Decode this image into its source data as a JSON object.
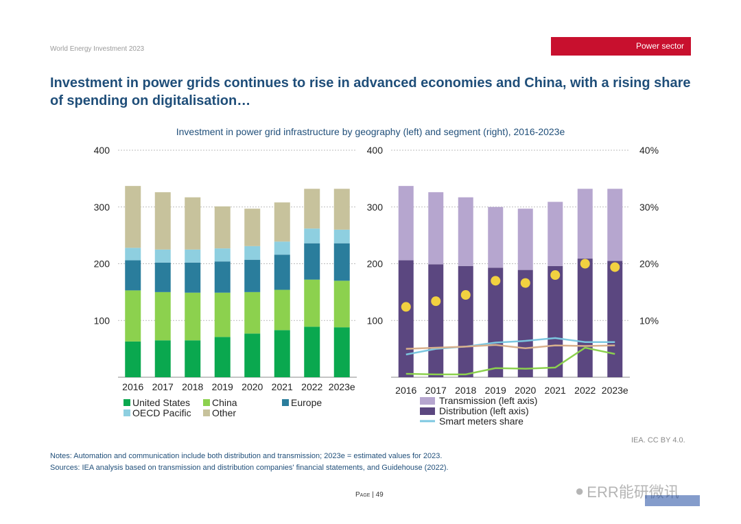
{
  "header": {
    "doc_title": "World Energy Investment 2023",
    "section": "Power sector"
  },
  "headline": "Investment in power grids continues to rise in advanced economies and China, with a rising share of spending on digitalisation…",
  "credit": "IEA. CC BY 4.0.",
  "notes": "Notes: Automation and communication include both distribution and transmission; 2023e = estimated values for 2023.",
  "sources": "Sources: IEA analysis based on transmission and distribution companies' financial statements, and Guidehouse (2022).",
  "page": {
    "label": "Page",
    "sep": " | ",
    "number": "49"
  },
  "watermark": "ERR能研微讯",
  "colors": {
    "united_states": "#0aa84f",
    "china": "#8cd14e",
    "europe": "#2a7d9c",
    "oecd_pacific": "#8ecfe0",
    "other": "#c7c29c",
    "transmission": "#b6a6cf",
    "distribution": "#5b4780",
    "smart_meters": "#7cc7e0",
    "automation": "#d8b08c",
    "communication": "#8cd14e",
    "marker": "#f2d140"
  },
  "chart_data": [
    {
      "type": "bar",
      "stacked": true,
      "title": "Investment in power grid infrastructure by geography (left) and segment (right), 2016-2023e",
      "categories": [
        "2016",
        "2017",
        "2018",
        "2019",
        "2020",
        "2021",
        "2022",
        "2023e"
      ],
      "ylim": [
        0,
        400
      ],
      "yticks": [
        "100",
        "200",
        "300",
        "400"
      ],
      "series": [
        {
          "name": "United States",
          "values": [
            63,
            65,
            65,
            71,
            77,
            83,
            89,
            88
          ]
        },
        {
          "name": "China",
          "values": [
            90,
            85,
            84,
            78,
            73,
            71,
            83,
            82
          ]
        },
        {
          "name": "Europe",
          "values": [
            53,
            52,
            53,
            55,
            57,
            62,
            64,
            66
          ]
        },
        {
          "name": "OECD Pacific",
          "values": [
            22,
            23,
            23,
            23,
            24,
            23,
            26,
            24
          ]
        },
        {
          "name": "Other",
          "values": [
            109,
            101,
            92,
            74,
            66,
            69,
            70,
            72
          ]
        }
      ],
      "legend_position": "bottom",
      "grid": true
    },
    {
      "type": "bar",
      "stacked": true,
      "categories": [
        "2016",
        "2017",
        "2018",
        "2019",
        "2020",
        "2021",
        "2022",
        "2023e"
      ],
      "ylim": [
        0,
        400
      ],
      "yticks": [
        "100",
        "200",
        "300",
        "400"
      ],
      "y2lim": [
        0,
        40
      ],
      "y2ticks": [
        "10%",
        "20%",
        "30%",
        "40%"
      ],
      "series": [
        {
          "name": "Transmission (left axis)",
          "values": [
            131,
            127,
            121,
            107,
            108,
            113,
            123,
            127
          ]
        },
        {
          "name": "Distribution (left axis)",
          "values": [
            206,
            199,
            196,
            193,
            189,
            196,
            209,
            205
          ]
        }
      ],
      "lines": [
        {
          "name": "Smart meters share",
          "axis": "right",
          "values": [
            4.0,
            5.0,
            5.4,
            6.1,
            6.4,
            6.9,
            6.2,
            6.2
          ]
        },
        {
          "axis": "right",
          "color_key": "automation",
          "values": [
            5.0,
            5.2,
            5.4,
            5.7,
            5.1,
            5.6,
            5.5,
            5.6
          ]
        },
        {
          "axis": "right",
          "color_key": "communication",
          "values": [
            0.6,
            0.5,
            0.5,
            1.6,
            1.5,
            1.7,
            5.2,
            4.1
          ]
        }
      ],
      "markers": {
        "axis": "right",
        "values": [
          12.4,
          13.4,
          14.5,
          17.0,
          16.6,
          18.0,
          20.0,
          19.4
        ]
      },
      "legend_position": "bottom",
      "grid": true
    }
  ]
}
